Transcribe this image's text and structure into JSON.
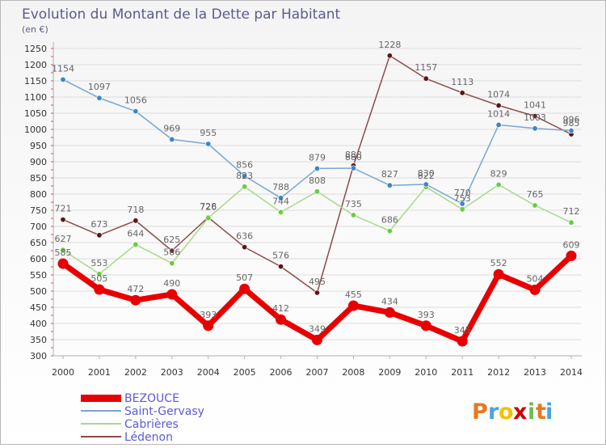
{
  "header": {
    "title": "Evolution du Montant de la Dette par Habitant",
    "unit": "(en €)"
  },
  "logo": {
    "letters": [
      "P",
      "r",
      "o",
      "x",
      "i",
      "t",
      "i"
    ],
    "colors": [
      "#e87722",
      "#4aa3df",
      "#f2c200",
      "#cc0000",
      "#6bbf4e",
      "#e87722",
      "#4aa3df"
    ]
  },
  "chart_data": {
    "type": "line",
    "title": "Evolution du Montant de la Dette par Habitant",
    "subtitle": "(en €)",
    "xlabel": "",
    "ylabel": "",
    "x": [
      2000,
      2001,
      2002,
      2003,
      2004,
      2005,
      2006,
      2007,
      2008,
      2009,
      2010,
      2011,
      2012,
      2013,
      2014
    ],
    "ylim": [
      300,
      1250
    ],
    "yticks": [
      300,
      350,
      400,
      450,
      500,
      550,
      600,
      650,
      700,
      750,
      800,
      850,
      900,
      950,
      1000,
      1050,
      1100,
      1150,
      1200,
      1250
    ],
    "grid": true,
    "legend_position": "bottom-left",
    "series": [
      {
        "name": "BEZOUCE",
        "color": "#e80000",
        "marker": "#e80000",
        "values": [
          585,
          505,
          472,
          490,
          393,
          507,
          412,
          349,
          455,
          434,
          393,
          345,
          552,
          504,
          609
        ]
      },
      {
        "name": "Saint-Gervasy",
        "color": "#77a7d2",
        "marker": "#3d85c6",
        "values": [
          1154,
          1097,
          1056,
          969,
          955,
          856,
          788,
          879,
          880,
          827,
          830,
          770,
          1014,
          1003,
          996
        ]
      },
      {
        "name": "Cabrières",
        "color": "#a8d98a",
        "marker": "#6acc3f",
        "values": [
          627,
          553,
          644,
          586,
          726,
          823,
          744,
          808,
          735,
          686,
          822,
          753,
          829,
          765,
          712
        ]
      },
      {
        "name": "Lédenon",
        "color": "#8c4a4a",
        "marker": "#5b1616",
        "values": [
          721,
          673,
          718,
          625,
          728,
          636,
          576,
          495,
          888,
          1228,
          1157,
          1113,
          1074,
          1041,
          985
        ]
      }
    ]
  }
}
